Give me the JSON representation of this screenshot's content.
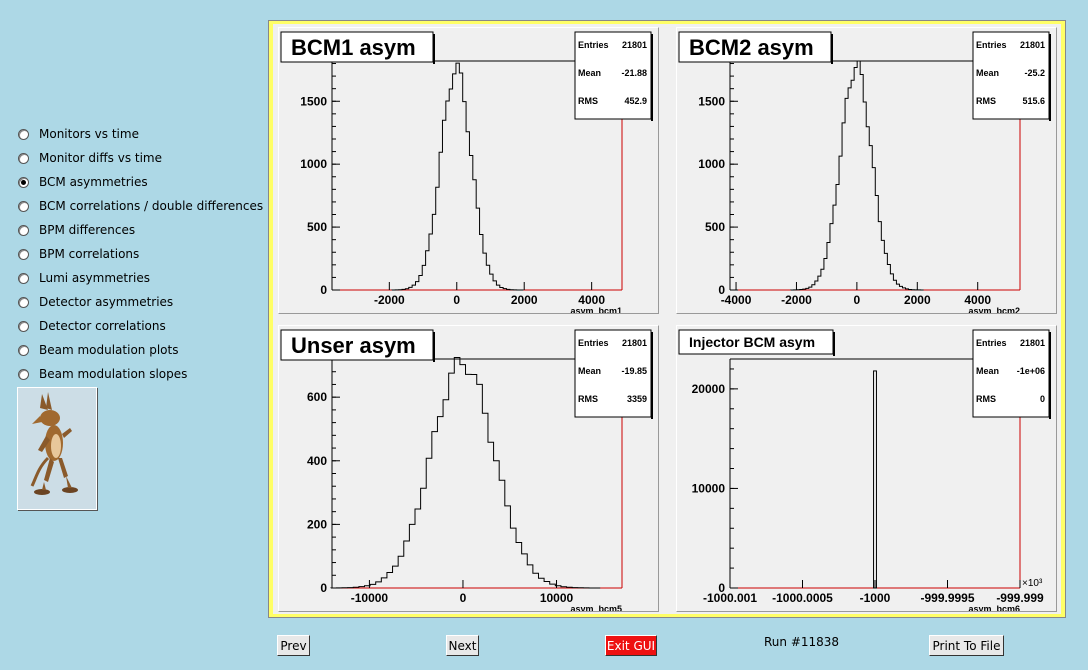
{
  "menu": {
    "items": [
      {
        "label": "Monitors vs time",
        "selected": false
      },
      {
        "label": "Monitor diffs vs time",
        "selected": false
      },
      {
        "label": "BCM asymmetries",
        "selected": true
      },
      {
        "label": "BCM correlations / double differences",
        "selected": false
      },
      {
        "label": "BPM differences",
        "selected": false
      },
      {
        "label": "BPM correlations",
        "selected": false
      },
      {
        "label": "Lumi asymmetries",
        "selected": false
      },
      {
        "label": "Detector asymmetries",
        "selected": false
      },
      {
        "label": "Detector correlations",
        "selected": false
      },
      {
        "label": "Beam modulation plots",
        "selected": false
      },
      {
        "label": "Beam modulation slopes",
        "selected": false
      }
    ]
  },
  "stats_labels": {
    "entries": "Entries",
    "mean": "Mean",
    "rms": "RMS"
  },
  "colors": {
    "background": "#add8e6",
    "canvas_border": "#ffff66",
    "axis": "#cc0000",
    "exit_button": "#ee1111"
  },
  "chart_data": [
    {
      "type": "bar",
      "title": "BCM1 asym",
      "xlabel": "asym_bcm1",
      "stats": {
        "entries": "21801",
        "mean": "-21.88",
        "rms": "452.9"
      },
      "xticks": [
        "-2000",
        "0",
        "2000",
        "4000"
      ],
      "xtick_values": [
        -2000,
        0,
        2000,
        4000
      ],
      "yticks": [
        "0",
        "500",
        "1000",
        "1500"
      ],
      "ytick_values": [
        0,
        500,
        1000,
        1500
      ],
      "xlim": [
        -3700,
        4900
      ],
      "ylim": [
        0,
        1820
      ],
      "distribution": {
        "kind": "gaussian",
        "mean": -21.88,
        "sigma": 452.9,
        "peak": 1760,
        "bin_width": 100
      }
    },
    {
      "type": "bar",
      "title": "BCM2 asym",
      "xlabel": "asym_bcm2",
      "stats": {
        "entries": "21801",
        "mean": "-25.2",
        "rms": "515.6"
      },
      "xticks": [
        "-4000",
        "-2000",
        "0",
        "2000",
        "4000"
      ],
      "xtick_values": [
        -4000,
        -2000,
        0,
        2000,
        4000
      ],
      "yticks": [
        "0",
        "500",
        "1000",
        "1500"
      ],
      "ytick_values": [
        0,
        500,
        1000,
        1500
      ],
      "xlim": [
        -4200,
        5400
      ],
      "ylim": [
        0,
        1820
      ],
      "distribution": {
        "kind": "gaussian",
        "mean": -25.2,
        "sigma": 515.6,
        "peak": 1780,
        "bin_width": 100
      }
    },
    {
      "type": "bar",
      "title": "Unser asym",
      "xlabel": "asym_bcm5",
      "stats": {
        "entries": "21801",
        "mean": "-19.85",
        "rms": "3359"
      },
      "xticks": [
        "-10000",
        "0",
        "10000"
      ],
      "xtick_values": [
        -10000,
        0,
        10000
      ],
      "yticks": [
        "0",
        "200",
        "400",
        "600"
      ],
      "ytick_values": [
        0,
        200,
        400,
        600
      ],
      "xlim": [
        -14000,
        17000
      ],
      "ylim": [
        0,
        720
      ],
      "distribution": {
        "kind": "gaussian",
        "mean": -19.85,
        "sigma": 3359,
        "peak": 710,
        "bin_width": 600
      }
    },
    {
      "type": "bar",
      "title": "Injector BCM asym",
      "xlabel": "asym_bcm6",
      "xunit": "×10³",
      "stats": {
        "entries": "21801",
        "mean": "-1e+06",
        "rms": "0"
      },
      "xticks": [
        "-1000.001",
        "-1000.0005",
        "-1000",
        "-999.9995",
        "-999.999"
      ],
      "xtick_values": [
        -1000.001,
        -1000.0005,
        -1000,
        -999.9995,
        -999.999
      ],
      "yticks": [
        "0",
        "10000",
        "20000"
      ],
      "ytick_values": [
        0,
        10000,
        20000
      ],
      "xlim": [
        -1000.001,
        -999.999
      ],
      "ylim": [
        0,
        23000
      ],
      "spike": {
        "x": -1000,
        "value": 21801
      }
    }
  ],
  "buttons": {
    "prev": "Prev",
    "next": "Next",
    "exit": "Exit GUI",
    "print": "Print To File"
  },
  "run_label": "Run #11838"
}
